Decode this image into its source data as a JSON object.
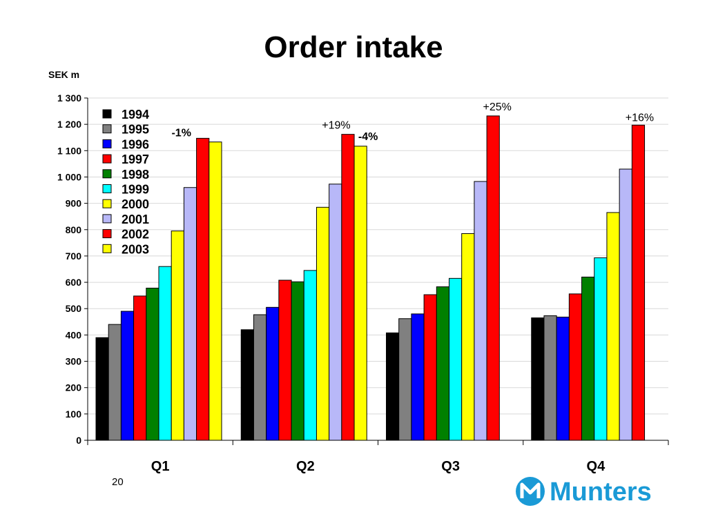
{
  "slide": {
    "title": "Order intake",
    "page_number": "20",
    "brand": "Munters",
    "brand_color": "#1a9ad6"
  },
  "chart_data": {
    "type": "bar",
    "title": "Order intake",
    "ylabel": "SEK m",
    "xlabel": "",
    "ylim": [
      0,
      1300
    ],
    "yticks": [
      0,
      100,
      200,
      300,
      400,
      500,
      600,
      700,
      800,
      900,
      1000,
      1100,
      1200,
      1300
    ],
    "ytick_labels": [
      "0",
      "100",
      "200",
      "300",
      "400",
      "500",
      "600",
      "700",
      "800",
      "900",
      "1 000",
      "1 100",
      "1 200",
      "1 300"
    ],
    "grid": true,
    "legend_position": "top-left",
    "categories": [
      "Q1",
      "Q2",
      "Q3",
      "Q4"
    ],
    "series": [
      {
        "name": "1994",
        "color": "#000000",
        "values": [
          390,
          420,
          408,
          465
        ]
      },
      {
        "name": "1995",
        "color": "#808080",
        "values": [
          440,
          477,
          462,
          473
        ]
      },
      {
        "name": "1996",
        "color": "#0000ff",
        "values": [
          490,
          505,
          480,
          468
        ]
      },
      {
        "name": "1997",
        "color": "#ff0000",
        "values": [
          548,
          608,
          553,
          556
        ]
      },
      {
        "name": "1998",
        "color": "#008000",
        "values": [
          578,
          602,
          583,
          620
        ]
      },
      {
        "name": "1999",
        "color": "#00ffff",
        "values": [
          660,
          645,
          615,
          693
        ]
      },
      {
        "name": "2000",
        "color": "#ffff00",
        "values": [
          795,
          885,
          785,
          865
        ]
      },
      {
        "name": "2001",
        "color": "#b8b8f8",
        "values": [
          960,
          973,
          983,
          1030
        ]
      },
      {
        "name": "2002",
        "color": "#ff0000",
        "values": [
          1147,
          1162,
          1232,
          1197
        ]
      },
      {
        "name": "2003",
        "color": "#ffff00",
        "values": [
          1133,
          1117,
          null,
          null
        ]
      }
    ],
    "annotations": [
      {
        "text": "-1%",
        "category": "Q1",
        "series": "2002",
        "bold": true
      },
      {
        "text": "+19%",
        "category": "Q2",
        "series": "2002",
        "bold": false
      },
      {
        "text": "-4%",
        "category": "Q2",
        "series": "2003",
        "bold": true
      },
      {
        "text": "+25%",
        "category": "Q3",
        "series": "2002",
        "bold": false
      },
      {
        "text": "+16%",
        "category": "Q4",
        "series": "2002",
        "bold": false
      }
    ]
  }
}
